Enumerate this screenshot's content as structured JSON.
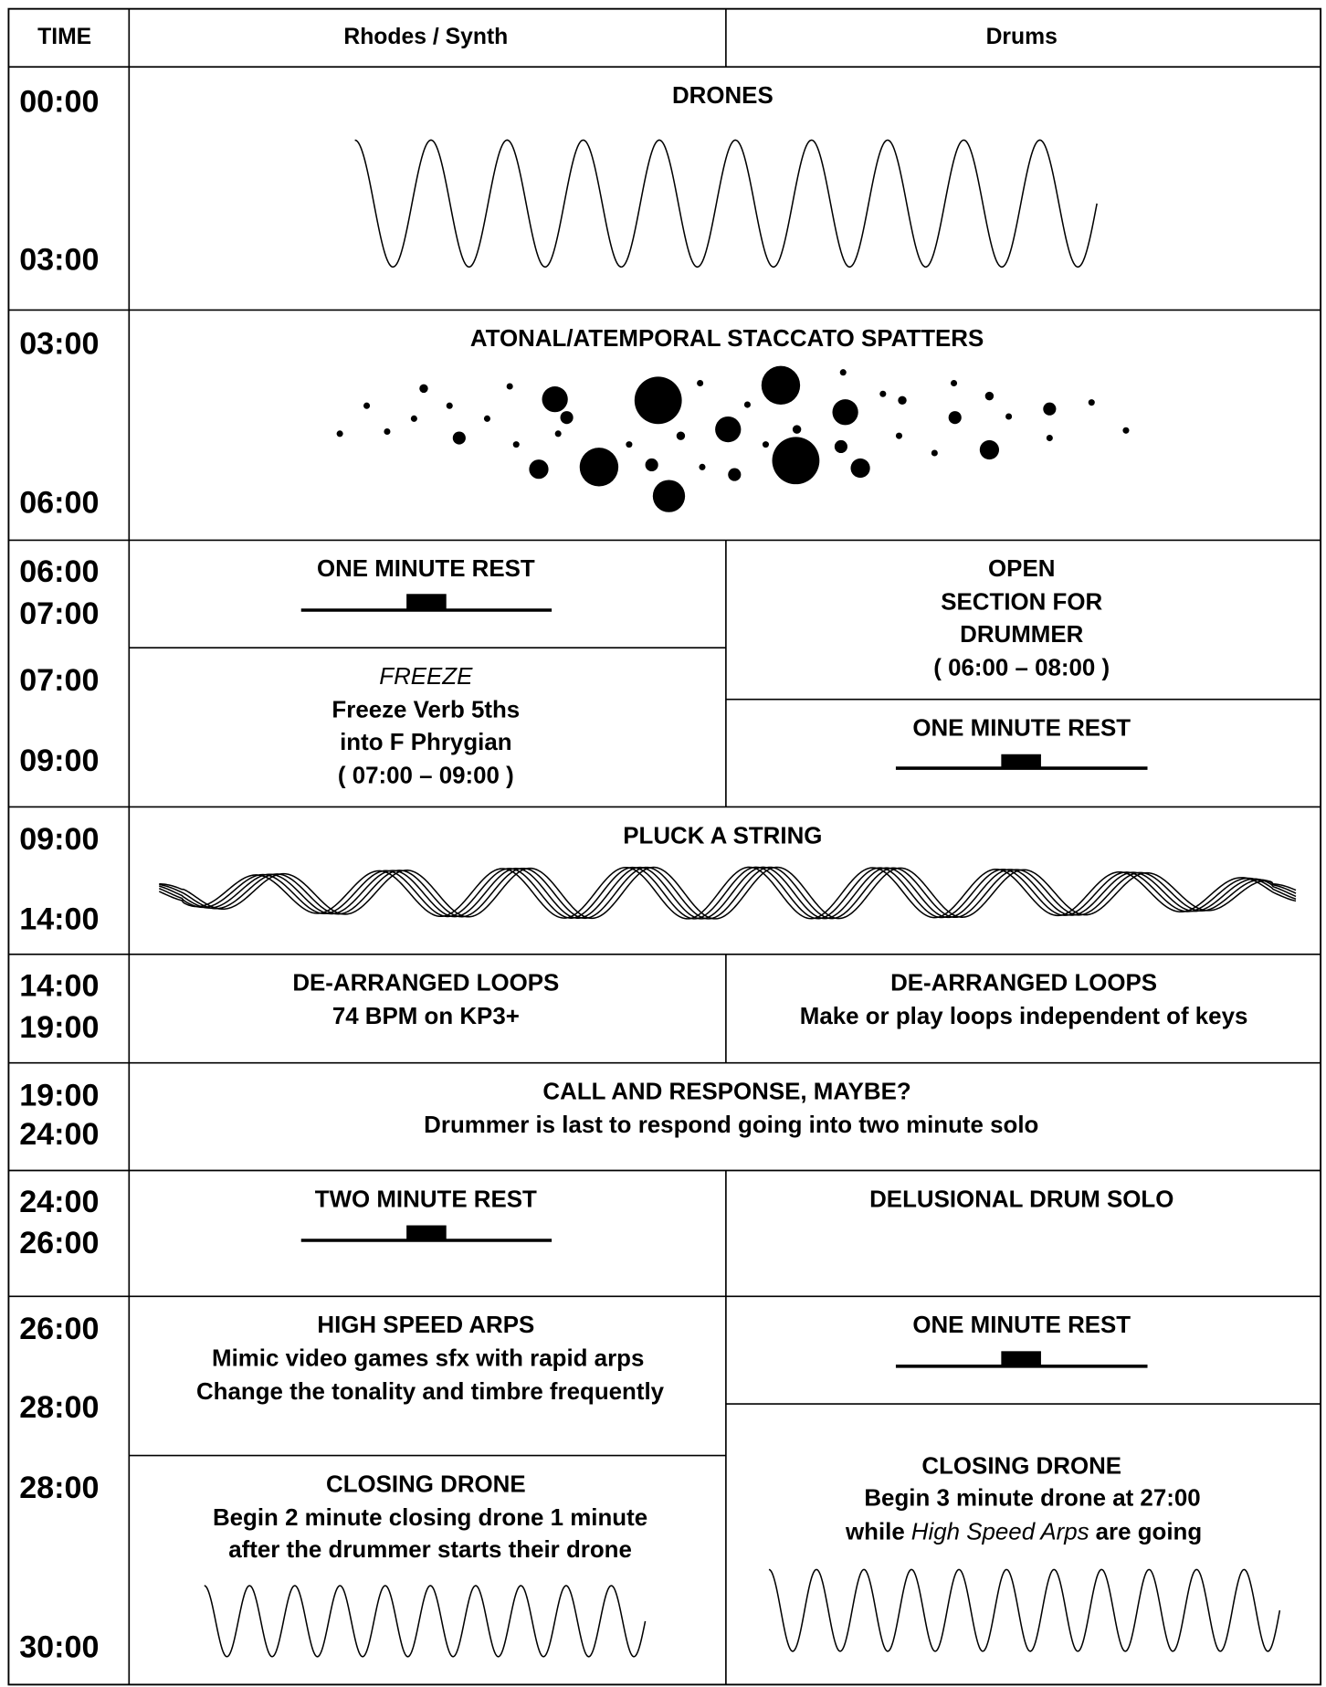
{
  "header": {
    "time": "TIME",
    "synth": "Rhodes / Synth",
    "drums": "Drums"
  },
  "rows": [
    {
      "times": [
        "00:00",
        "03:00"
      ],
      "full": {
        "title": "DRONES"
      }
    },
    {
      "times": [
        "03:00",
        "06:00"
      ],
      "full": {
        "title": "ATONAL/ATEMPORAL STACCATO SPATTERS"
      }
    },
    {
      "times": [
        "06:00",
        "07:00"
      ],
      "synth": {
        "title": "ONE MINUTE REST"
      },
      "drums": {
        "title": "OPEN",
        "lines": [
          "SECTION FOR",
          "DRUMMER",
          "( 06:00 – 08:00 )"
        ]
      }
    },
    {
      "times": [
        "07:00",
        "09:00"
      ],
      "synth": {
        "label": "FREEZE",
        "lines": [
          "Freeze Verb 5ths",
          "into F Phrygian",
          "( 07:00 – 09:00 )"
        ]
      },
      "drums": {
        "title": "ONE MINUTE REST"
      }
    },
    {
      "times": [
        "09:00",
        "14:00"
      ],
      "full": {
        "title": "PLUCK A STRING"
      }
    },
    {
      "times": [
        "14:00",
        "19:00"
      ],
      "synth": {
        "title": "DE-ARRANGED LOOPS",
        "lines": [
          "74 BPM on KP3+"
        ]
      },
      "drums": {
        "title": "DE-ARRANGED LOOPS",
        "lines": [
          "Make or play loops independent of keys"
        ]
      }
    },
    {
      "times": [
        "19:00",
        "24:00"
      ],
      "full": {
        "title": "CALL AND RESPONSE, MAYBE?",
        "lines": [
          "Drummer is last to respond going into two minute solo"
        ]
      }
    },
    {
      "times": [
        "24:00",
        "26:00"
      ],
      "synth": {
        "title": "TWO MINUTE REST"
      },
      "drums": {
        "title": "DELUSIONAL DRUM SOLO"
      }
    },
    {
      "times": [
        "26:00",
        "28:00"
      ],
      "synth": {
        "title": "HIGH SPEED ARPS",
        "lines": [
          "Mimic video games sfx with rapid arps",
          "Change the tonality and timbre frequently"
        ]
      },
      "drums": {
        "title": "ONE MINUTE REST"
      }
    },
    {
      "times": [
        "28:00",
        "30:00"
      ],
      "synth": {
        "title": "CLOSING DRONE",
        "lines": [
          "Begin 2 minute closing drone 1 minute",
          "after the drummer starts their drone"
        ]
      },
      "drums": {
        "title": "CLOSING DRONE",
        "lines": [
          "Begin 3 minute drone at 27:00"
        ],
        "mixed": [
          "while",
          "High Speed Arps",
          "are going"
        ]
      }
    }
  ]
}
